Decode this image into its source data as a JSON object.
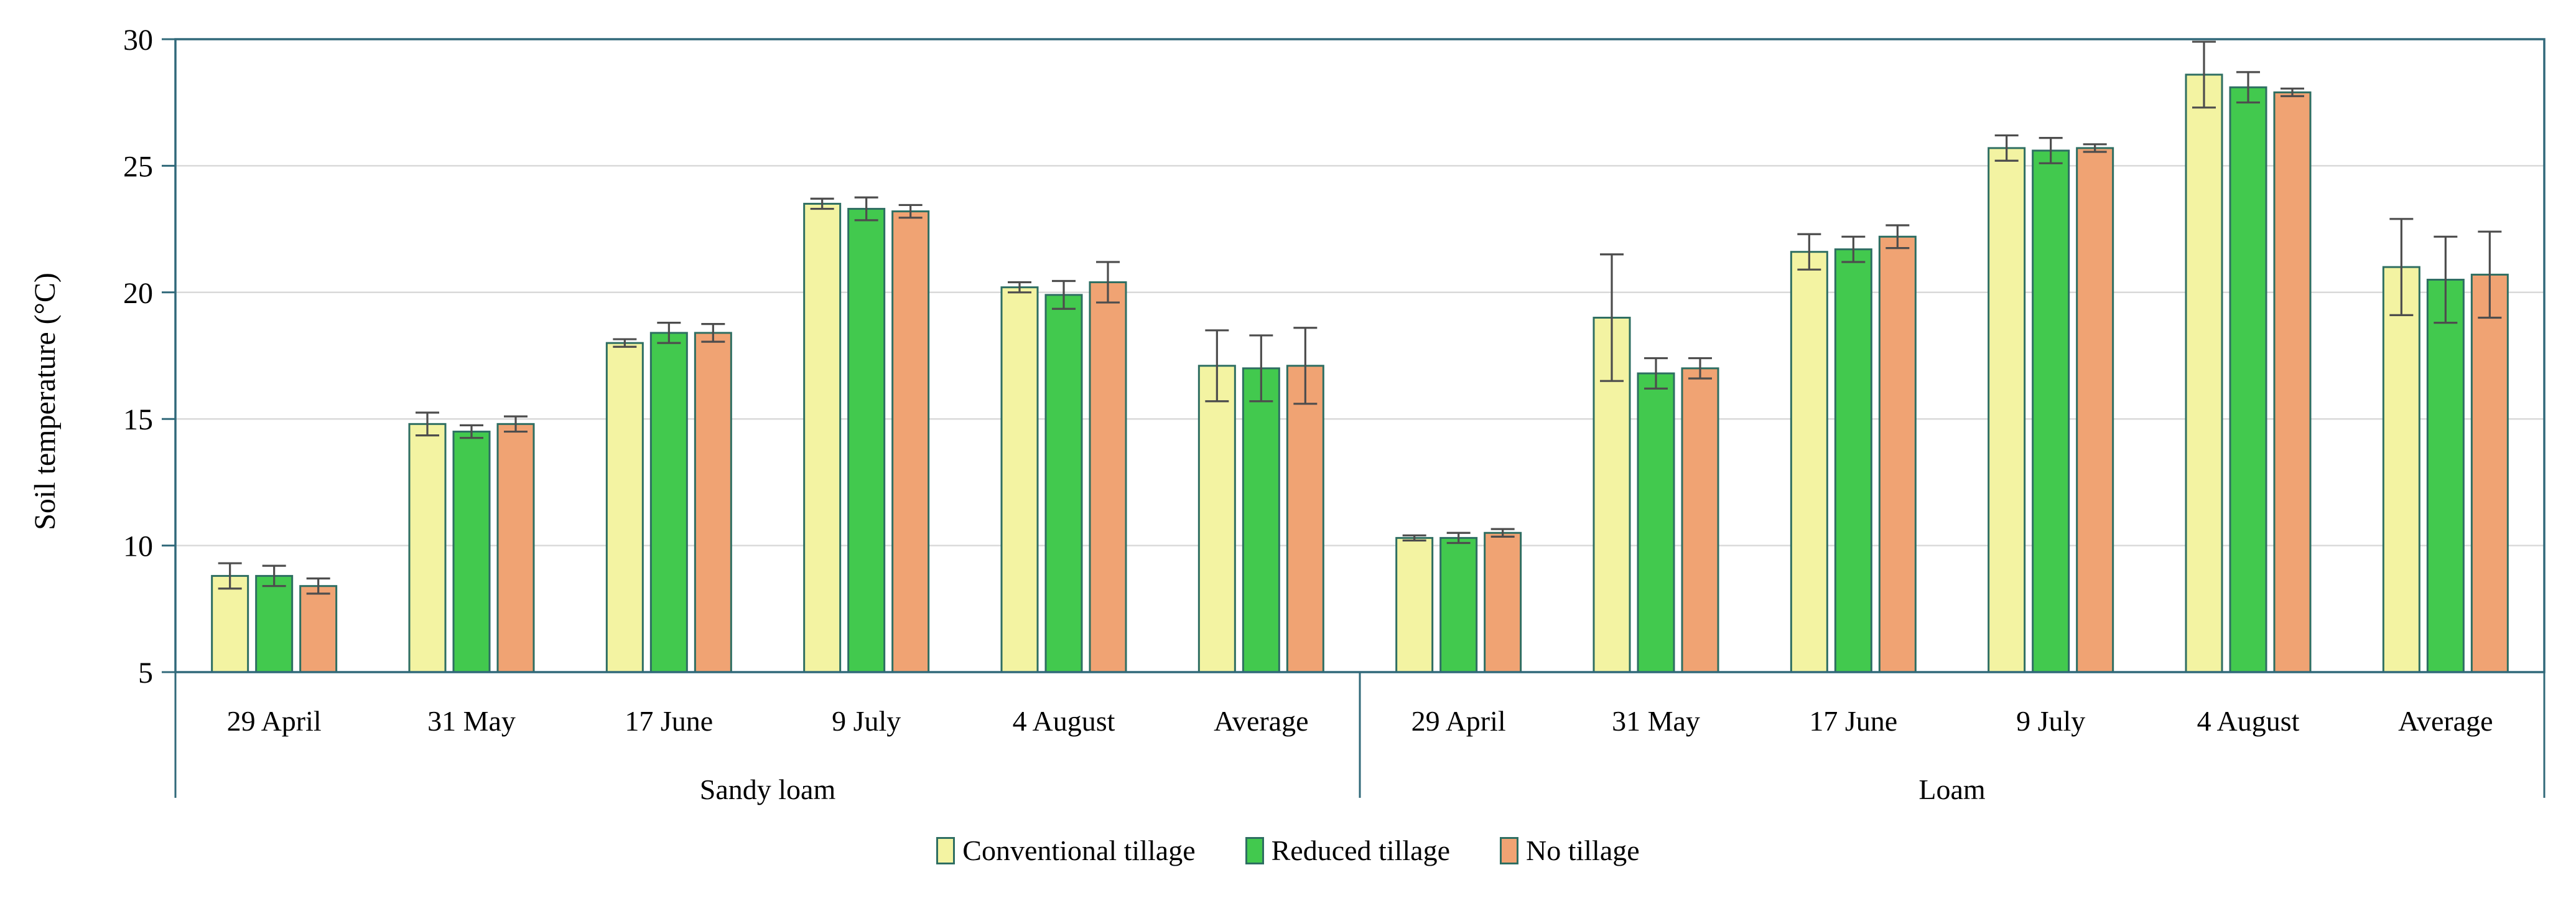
{
  "chart_data": {
    "type": "bar",
    "title": "",
    "ylabel": "Soil temperature (°C)",
    "xlabel": "",
    "ylim": [
      5,
      30
    ],
    "ytick_step": 5,
    "yticks": [
      5,
      10,
      15,
      20,
      25,
      30
    ],
    "grid": "horizontal",
    "legend_position": "bottom-center",
    "categories": [
      "29 April",
      "31 May",
      "17 June",
      "9 July",
      "4 August",
      "Average"
    ],
    "group_labels": [
      "Sandy loam",
      "Loam"
    ],
    "series_names": [
      "Conventional tillage",
      "Reduced tillage",
      "No tillage"
    ],
    "sections": [
      {
        "label": "Sandy loam",
        "categories": [
          "29 April",
          "31 May",
          "17 June",
          "9 July",
          "4 August",
          "Average"
        ],
        "series": [
          {
            "name": "Conventional tillage",
            "values": [
              8.8,
              14.8,
              18.0,
              23.5,
              20.2,
              17.1
            ],
            "errors": [
              0.5,
              0.45,
              0.15,
              0.2,
              0.2,
              1.4
            ]
          },
          {
            "name": "Reduced tillage",
            "values": [
              8.8,
              14.5,
              18.4,
              23.3,
              19.9,
              17.0
            ],
            "errors": [
              0.4,
              0.25,
              0.4,
              0.45,
              0.55,
              1.3
            ]
          },
          {
            "name": "No tillage",
            "values": [
              8.4,
              14.8,
              18.4,
              23.2,
              20.4,
              17.1
            ],
            "errors": [
              0.3,
              0.3,
              0.35,
              0.25,
              0.8,
              1.5
            ]
          }
        ]
      },
      {
        "label": "Loam",
        "categories": [
          "29 April",
          "31 May",
          "17 June",
          "9 July",
          "4 August",
          "Average"
        ],
        "series": [
          {
            "name": "Conventional tillage",
            "values": [
              10.3,
              19.0,
              21.6,
              25.7,
              28.6,
              21.0
            ],
            "errors": [
              0.1,
              2.5,
              0.7,
              0.5,
              1.3,
              1.9
            ]
          },
          {
            "name": "Reduced tillage",
            "values": [
              10.3,
              16.8,
              21.7,
              25.6,
              28.1,
              20.5
            ],
            "errors": [
              0.2,
              0.6,
              0.5,
              0.5,
              0.6,
              1.7
            ]
          },
          {
            "name": "No tillage",
            "values": [
              10.5,
              17.0,
              22.2,
              25.7,
              27.9,
              20.7
            ],
            "errors": [
              0.15,
              0.4,
              0.45,
              0.15,
              0.15,
              1.7
            ]
          }
        ]
      }
    ],
    "legend": [
      {
        "label": "Conventional tillage",
        "fill": "#F3F3A2"
      },
      {
        "label": "Reduced tillage",
        "fill": "#42C94E"
      },
      {
        "label": "No tillage",
        "fill": "#F0A373"
      }
    ],
    "colors": {
      "conventional_tillage_fill": "#F3F3A2",
      "reduced_tillage_fill": "#42C94E",
      "no_tillage_fill": "#F0A373",
      "bar_border": "#2E6E62",
      "axis_frame": "#31697A",
      "gridline": "#D9D9D9",
      "error_bar": "#4D4D4D",
      "text": "#000000"
    }
  }
}
